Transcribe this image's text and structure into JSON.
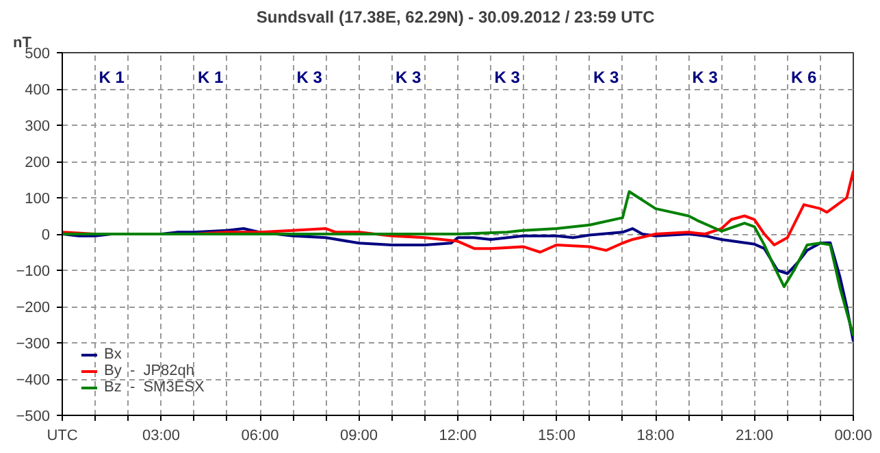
{
  "chart_data": {
    "type": "line",
    "title": "Sundsvall (17.38E, 62.29N) - 30.09.2012 / 23:59  UTC",
    "ylabel": "nT",
    "xlim": [
      0,
      24
    ],
    "ylim": [
      -500,
      500
    ],
    "xticks": [
      {
        "value": 0,
        "label": "UTC"
      },
      {
        "value": 1,
        "label": null
      },
      {
        "value": 2,
        "label": null
      },
      {
        "value": 3,
        "label": "03:00"
      },
      {
        "value": 4,
        "label": null
      },
      {
        "value": 5,
        "label": null
      },
      {
        "value": 6,
        "label": "06:00"
      },
      {
        "value": 7,
        "label": null
      },
      {
        "value": 8,
        "label": null
      },
      {
        "value": 9,
        "label": "09:00"
      },
      {
        "value": 10,
        "label": null
      },
      {
        "value": 11,
        "label": null
      },
      {
        "value": 12,
        "label": "12:00"
      },
      {
        "value": 13,
        "label": null
      },
      {
        "value": 14,
        "label": null
      },
      {
        "value": 15,
        "label": "15:00"
      },
      {
        "value": 16,
        "label": null
      },
      {
        "value": 17,
        "label": null
      },
      {
        "value": 18,
        "label": "18:00"
      },
      {
        "value": 19,
        "label": null
      },
      {
        "value": 20,
        "label": null
      },
      {
        "value": 21,
        "label": "21:00"
      },
      {
        "value": 22,
        "label": null
      },
      {
        "value": 23,
        "label": null
      },
      {
        "value": 24,
        "label": "00:00"
      }
    ],
    "yticks": [
      -500,
      -400,
      -300,
      -200,
      -100,
      0,
      100,
      200,
      300,
      400,
      500
    ],
    "grid": true,
    "legend": "bottom left",
    "line_style": "solid",
    "series": [
      {
        "name": "Bx",
        "color": "#000080",
        "x": [
          0,
          0.5,
          1,
          1.5,
          2,
          3,
          3.5,
          4,
          5,
          5.5,
          6,
          7,
          8,
          9,
          10,
          11,
          11.8,
          12,
          12.5,
          13,
          14,
          15,
          15.5,
          16,
          17,
          17.3,
          17.6,
          18,
          19,
          19.5,
          20,
          21,
          21.3,
          21.7,
          22,
          22.3,
          22.6,
          23,
          23.3,
          23.6,
          23.8,
          24
        ],
        "values": [
          0,
          -5,
          -5,
          0,
          0,
          0,
          5,
          5,
          10,
          15,
          5,
          -5,
          -10,
          -25,
          -30,
          -30,
          -25,
          -10,
          -10,
          -15,
          -5,
          -5,
          -10,
          -3,
          5,
          15,
          0,
          -5,
          0,
          -5,
          -15,
          -28,
          -40,
          -100,
          -109,
          -80,
          -45,
          -25,
          -24,
          -120,
          -200,
          -296
        ]
      },
      {
        "name": "By  -  JP82qh",
        "color": "#ff0000",
        "x": [
          0,
          1,
          2,
          3,
          4,
          5,
          6,
          7,
          8,
          8.3,
          9,
          10,
          11,
          12,
          12.5,
          13,
          14,
          14.5,
          15,
          16,
          16.5,
          17,
          17.3,
          18,
          19,
          19.5,
          20,
          20.3,
          20.7,
          21,
          21.3,
          21.6,
          22,
          22.5,
          23,
          23.2,
          23.5,
          23.8,
          24
        ],
        "values": [
          5,
          0,
          0,
          0,
          0,
          5,
          5,
          10,
          15,
          5,
          5,
          -5,
          -10,
          -20,
          -40,
          -40,
          -35,
          -50,
          -30,
          -35,
          -45,
          -25,
          -15,
          0,
          5,
          0,
          15,
          40,
          50,
          40,
          0,
          -30,
          -10,
          81,
          70,
          60,
          80,
          100,
          174
        ]
      },
      {
        "name": "Bz  -  SM3ESX",
        "color": "#008000",
        "x": [
          0,
          3,
          6,
          9,
          12,
          13.5,
          14,
          15,
          16,
          17,
          17.2,
          18,
          19,
          19.3,
          20,
          20.7,
          21,
          21.3,
          21.6,
          21.9,
          22.2,
          22.6,
          23,
          23.3,
          23.6,
          24
        ],
        "values": [
          0,
          0,
          0,
          0,
          0,
          5,
          10,
          15,
          25,
          45,
          117,
          70,
          50,
          36,
          8,
          30,
          20,
          -30,
          -90,
          -145,
          -100,
          -30,
          -25,
          -30,
          -150,
          -280
        ]
      }
    ],
    "annotations": [
      "K 1",
      "K 1",
      "K 3",
      "K 3",
      "K 3",
      "K 3",
      "K 3",
      "K 6"
    ]
  }
}
